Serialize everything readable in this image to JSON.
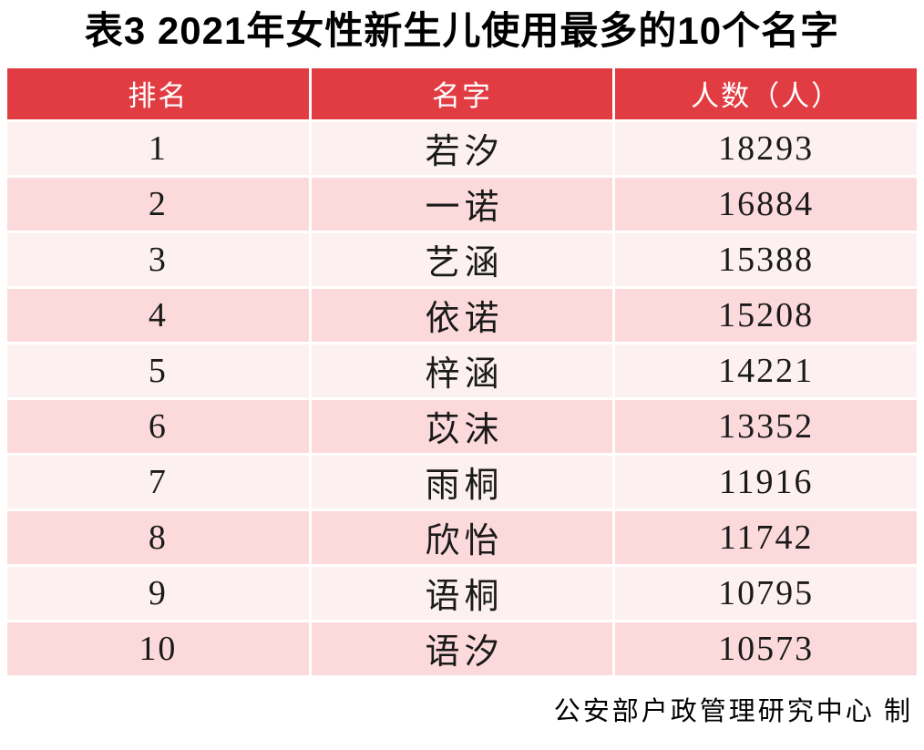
{
  "title": "表3  2021年女性新生儿使用最多的10个名字",
  "footer": "公安部户政管理研究中心 制",
  "colors": {
    "header_bg": "#E23C43",
    "row_odd_bg": "#FDF0F0",
    "row_even_bg": "#FCDADC",
    "header_text": "#FFFFFF",
    "body_text": "#1A1A1A",
    "page_bg": "#FFFFFF"
  },
  "chart_data": {
    "type": "table",
    "title": "表3  2021年女性新生儿使用最多的10个名字",
    "columns": [
      "排名",
      "名字",
      "人数（人）"
    ],
    "rows": [
      [
        "1",
        "若汐",
        "18293"
      ],
      [
        "2",
        "一诺",
        "16884"
      ],
      [
        "3",
        "艺涵",
        "15388"
      ],
      [
        "4",
        "依诺",
        "15208"
      ],
      [
        "5",
        "梓涵",
        "14221"
      ],
      [
        "6",
        "苡沫",
        "13352"
      ],
      [
        "7",
        "雨桐",
        "11916"
      ],
      [
        "8",
        "欣怡",
        "11742"
      ],
      [
        "9",
        "语桐",
        "10795"
      ],
      [
        "10",
        "语汐",
        "10573"
      ]
    ],
    "source": "公安部户政管理研究中心 制",
    "layout": {
      "zebra_striping": true,
      "header_position": "top"
    }
  }
}
